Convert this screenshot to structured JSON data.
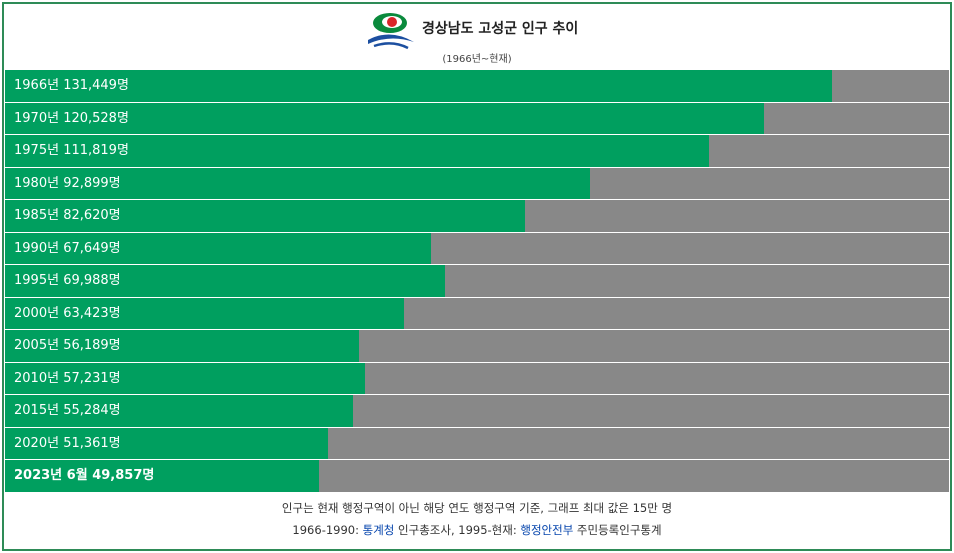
{
  "chart_data": {
    "type": "bar",
    "orientation": "horizontal",
    "title": "경상남도 고성군 인구 추이",
    "subtitle": "(1966년~현재)",
    "categories": [
      "1966년",
      "1970년",
      "1975년",
      "1980년",
      "1985년",
      "1990년",
      "1995년",
      "2000년",
      "2005년",
      "2010년",
      "2015년",
      "2020년",
      "2023년 6월"
    ],
    "values": [
      131449,
      120528,
      111819,
      92899,
      82620,
      67649,
      69988,
      63423,
      56189,
      57231,
      55284,
      51361,
      49857
    ],
    "value_labels": [
      "131,449명",
      "120,528명",
      "111,819명",
      "92,899명",
      "82,620명",
      "67,649명",
      "69,988명",
      "63,423명",
      "56,189명",
      "57,231명",
      "55,284명",
      "51,361명",
      "49,857명"
    ],
    "xlim": [
      0,
      150000
    ],
    "color": "#009f5f",
    "track_color": "#888888",
    "note": "인구는 현재 행정구역이 아닌 해당 연도 행정구역 기준, 그래프 최대 값은 15만 명",
    "source": [
      "1966-1990: ",
      "통계청",
      " 인구총조사, 1995-현재: ",
      "행정안전부",
      " 주민등록인구통계"
    ]
  }
}
